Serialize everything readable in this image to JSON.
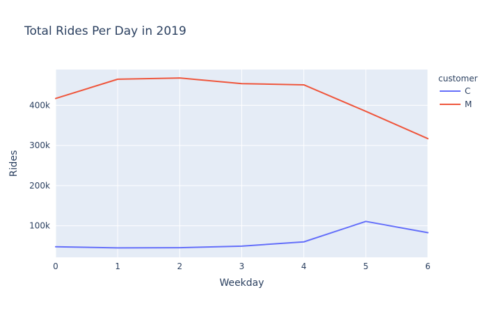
{
  "chart_data": {
    "type": "line",
    "title": "Total Rides Per Day in 2019",
    "xlabel": "Weekday",
    "ylabel": "Rides",
    "x": [
      0,
      1,
      2,
      3,
      4,
      5,
      6
    ],
    "xlim": [
      0,
      6
    ],
    "ylim": [
      21500,
      489000
    ],
    "xticks": [
      "0",
      "1",
      "2",
      "3",
      "4",
      "5",
      "6"
    ],
    "yticks": [
      {
        "value": 100000,
        "label": "100k"
      },
      {
        "value": 200000,
        "label": "200k"
      },
      {
        "value": 300000,
        "label": "300k"
      },
      {
        "value": 400000,
        "label": "400k"
      }
    ],
    "grid": true,
    "legend": {
      "title": "customer",
      "placement": "top-right"
    },
    "series": [
      {
        "name": "C",
        "color": "#636efa",
        "values": [
          48000,
          45000,
          45500,
          49500,
          60000,
          111000,
          83000
        ]
      },
      {
        "name": "M",
        "color": "#ef553b",
        "values": [
          417000,
          465000,
          468000,
          454000,
          451000,
          385000,
          317000
        ]
      }
    ]
  }
}
